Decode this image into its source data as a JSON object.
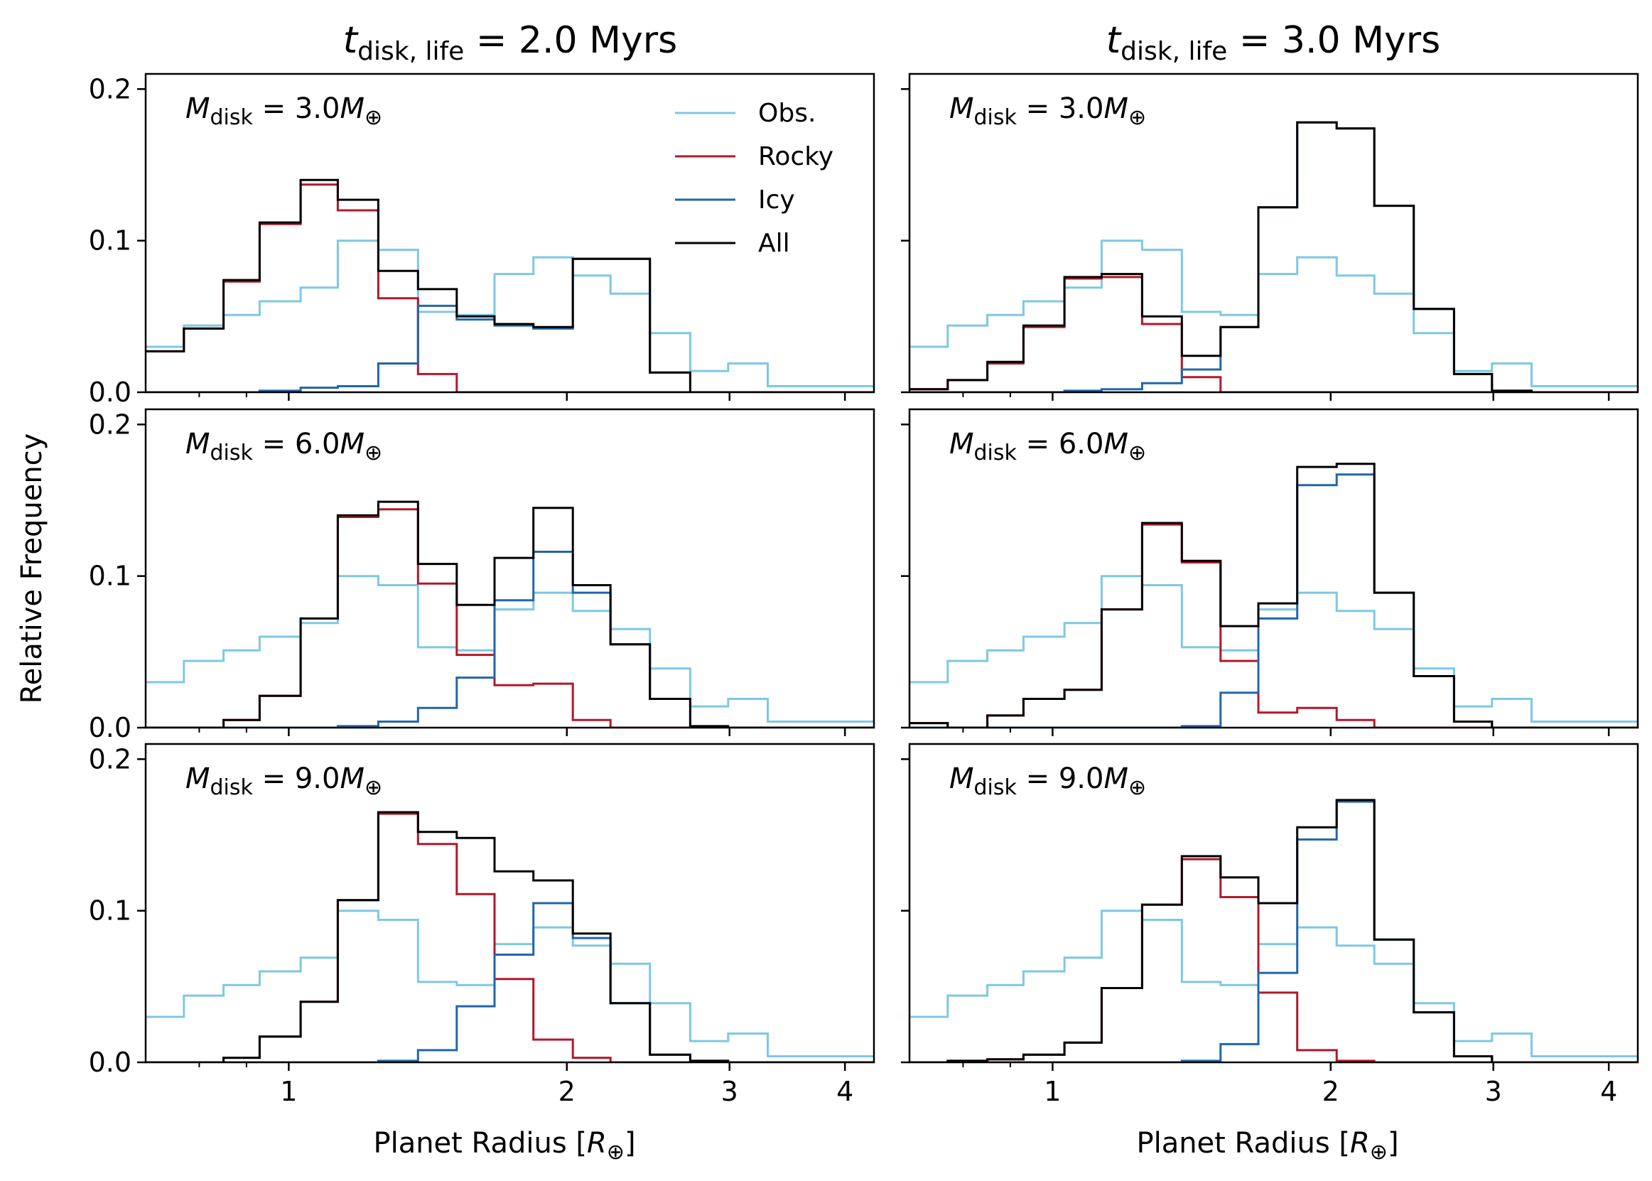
{
  "figure": {
    "column_titles": [
      {
        "prefix": "t",
        "sub": "disk, life",
        "value": " = 2.0 Myrs"
      },
      {
        "prefix": "t",
        "sub": "disk, life",
        "value": " = 3.0 Myrs"
      }
    ],
    "row_labels": [
      {
        "prefix": "M",
        "sub": "disk",
        "value": " = 3.0",
        "unit": "M",
        "unit_sub": "⊕"
      },
      {
        "prefix": "M",
        "sub": "disk",
        "value": " = 6.0",
        "unit": "M",
        "unit_sub": "⊕"
      },
      {
        "prefix": "M",
        "sub": "disk",
        "value": " = 9.0",
        "unit": "M",
        "unit_sub": "⊕"
      }
    ],
    "xlabel": {
      "text": "Planet Radius [",
      "sym": "R",
      "sub": "⊕",
      "close": "]"
    },
    "ylabel": "Relative Frequency",
    "xticks": [
      "1",
      "2",
      "3",
      "4"
    ],
    "yticks": [
      "0.0",
      "0.1",
      "0.2"
    ]
  },
  "legend": [
    {
      "key": "obs",
      "label": "Obs."
    },
    {
      "key": "rocky",
      "label": "Rocky"
    },
    {
      "key": "icy",
      "label": "Icy"
    },
    {
      "key": "all",
      "label": "All"
    }
  ],
  "colors": {
    "obs": "#7ec8e3",
    "rocky": "#b2182b",
    "icy": "#2166ac",
    "all": "#000000"
  },
  "chart_data": {
    "type": "step-histogram",
    "xscale": "log",
    "xlim": [
      0.7,
      4.3
    ],
    "ylim": [
      0,
      0.21
    ],
    "bin_edges": [
      0.7,
      0.77,
      0.85,
      0.93,
      1.03,
      1.13,
      1.25,
      1.38,
      1.52,
      1.67,
      1.84,
      2.03,
      2.23,
      2.46,
      2.72,
      2.99,
      3.3,
      3.64,
      4.01,
      4.3
    ],
    "obs": [
      0.03,
      0.044,
      0.051,
      0.06,
      0.069,
      0.1,
      0.094,
      0.053,
      0.051,
      0.078,
      0.089,
      0.077,
      0.065,
      0.039,
      0.014,
      0.019,
      0.004,
      0.004,
      0.004
    ],
    "panels": [
      {
        "row": 0,
        "col": 0,
        "rocky": [
          0.027,
          0.042,
          0.073,
          0.111,
          0.137,
          0.12,
          0.062,
          0.012,
          0,
          0,
          0,
          0,
          0,
          0,
          0,
          0,
          0,
          0,
          0
        ],
        "icy": [
          0,
          0,
          0,
          0.001,
          0.003,
          0.004,
          0.019,
          0.057,
          0.048,
          0.044,
          0.042,
          0.088,
          0.088,
          0.013,
          0,
          0,
          0,
          0,
          0
        ],
        "all": [
          0.027,
          0.042,
          0.074,
          0.112,
          0.14,
          0.127,
          0.08,
          0.068,
          0.05,
          0.045,
          0.043,
          0.088,
          0.088,
          0.013,
          0,
          0,
          0,
          0,
          0
        ]
      },
      {
        "row": 0,
        "col": 1,
        "rocky": [
          0.002,
          0.008,
          0.019,
          0.043,
          0.075,
          0.076,
          0.045,
          0.01,
          0,
          0,
          0,
          0,
          0,
          0,
          0,
          0,
          0,
          0,
          0
        ],
        "icy": [
          0,
          0,
          0,
          0,
          0.001,
          0.002,
          0.006,
          0.015,
          0.043,
          0.122,
          0.178,
          0.174,
          0.123,
          0.055,
          0.012,
          0.001,
          0,
          0,
          0
        ],
        "all": [
          0.002,
          0.008,
          0.02,
          0.044,
          0.076,
          0.078,
          0.05,
          0.024,
          0.043,
          0.122,
          0.178,
          0.174,
          0.123,
          0.055,
          0.012,
          0.001,
          0,
          0,
          0
        ]
      },
      {
        "row": 1,
        "col": 0,
        "rocky": [
          0,
          0,
          0.005,
          0.021,
          0.072,
          0.139,
          0.144,
          0.095,
          0.048,
          0.028,
          0.029,
          0.005,
          0,
          0,
          0,
          0,
          0,
          0,
          0
        ],
        "icy": [
          0,
          0,
          0,
          0,
          0,
          0.001,
          0.004,
          0.013,
          0.033,
          0.084,
          0.116,
          0.089,
          0.055,
          0.019,
          0,
          0,
          0,
          0,
          0
        ],
        "all": [
          0,
          0,
          0.005,
          0.021,
          0.072,
          0.14,
          0.149,
          0.108,
          0.081,
          0.112,
          0.145,
          0.094,
          0.055,
          0.019,
          0.001,
          0,
          0,
          0,
          0
        ]
      },
      {
        "row": 1,
        "col": 1,
        "rocky": [
          0.003,
          0,
          0.008,
          0.019,
          0.025,
          0.078,
          0.134,
          0.109,
          0.044,
          0.01,
          0.013,
          0.005,
          0,
          0,
          0,
          0,
          0,
          0,
          0
        ],
        "icy": [
          0,
          0,
          0,
          0,
          0,
          0,
          0,
          0.001,
          0.023,
          0.072,
          0.16,
          0.167,
          0.089,
          0.034,
          0.004,
          0,
          0,
          0,
          0
        ],
        "all": [
          0.003,
          0,
          0.008,
          0.019,
          0.025,
          0.078,
          0.135,
          0.11,
          0.067,
          0.082,
          0.172,
          0.174,
          0.089,
          0.034,
          0.004,
          0,
          0,
          0,
          0
        ]
      },
      {
        "row": 2,
        "col": 0,
        "rocky": [
          0,
          0,
          0.003,
          0.017,
          0.04,
          0.107,
          0.164,
          0.144,
          0.111,
          0.055,
          0.015,
          0.003,
          0,
          0,
          0,
          0,
          0,
          0,
          0
        ],
        "icy": [
          0,
          0,
          0,
          0,
          0,
          0,
          0.001,
          0.008,
          0.037,
          0.071,
          0.105,
          0.082,
          0.039,
          0.005,
          0.001,
          0,
          0,
          0,
          0
        ],
        "all": [
          0,
          0,
          0.003,
          0.017,
          0.04,
          0.107,
          0.165,
          0.152,
          0.148,
          0.126,
          0.12,
          0.085,
          0.039,
          0.005,
          0.001,
          0,
          0,
          0,
          0
        ]
      },
      {
        "row": 2,
        "col": 1,
        "rocky": [
          0,
          0.001,
          0.002,
          0.005,
          0.013,
          0.049,
          0.104,
          0.134,
          0.109,
          0.046,
          0.008,
          0.001,
          0,
          0,
          0,
          0,
          0,
          0,
          0
        ],
        "icy": [
          0,
          0,
          0,
          0,
          0,
          0,
          0,
          0.001,
          0.012,
          0.059,
          0.147,
          0.172,
          0.081,
          0.033,
          0.004,
          0,
          0,
          0,
          0
        ],
        "all": [
          0,
          0.001,
          0.002,
          0.005,
          0.013,
          0.049,
          0.104,
          0.136,
          0.122,
          0.105,
          0.155,
          0.173,
          0.081,
          0.033,
          0.004,
          0,
          0,
          0,
          0
        ]
      }
    ]
  }
}
